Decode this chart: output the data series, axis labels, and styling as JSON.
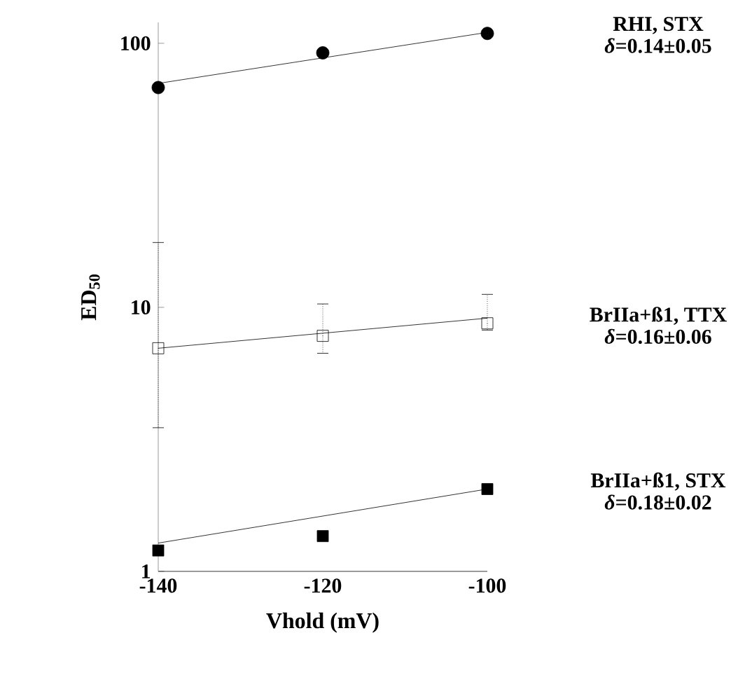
{
  "chart_data": {
    "type": "scatter",
    "xlabel": "Vhold (mV)",
    "ylabel": "ED$_{50}$",
    "log": "y",
    "xlim": [
      -140,
      -100
    ],
    "ylim": [
      1,
      120
    ],
    "xticks": [
      -140,
      -120,
      -100
    ],
    "yticks": [
      1,
      10,
      100
    ],
    "grid": false,
    "series": [
      {
        "name": "RHI, STX",
        "color": "#000000",
        "marker": "circle",
        "x": [
          -140,
          -120,
          -100
        ],
        "values": [
          68,
          92,
          109
        ]
      },
      {
        "name": "BrIIa+ß1, TTX",
        "color": "#000000",
        "marker": "square-open",
        "x": [
          -140,
          -120,
          -100
        ],
        "values": [
          7.0,
          7.8,
          8.7
        ],
        "errors": [
          [
            3.5,
            17.6
          ],
          [
            6.7,
            10.3
          ],
          [
            8.2,
            11.2
          ]
        ]
      },
      {
        "name": "BrIIa+ß1, STX",
        "color": "#000000",
        "marker": "square",
        "x": [
          -140,
          -120,
          -100
        ],
        "values": [
          1.2,
          1.36,
          2.05
        ]
      },
      {
        "type": "line",
        "color": "#000000",
        "marker": "none",
        "x": [
          -140,
          -100
        ],
        "values": [
          70.5,
          110
        ]
      },
      {
        "type": "line",
        "color": "#000000",
        "marker": "none",
        "x": [
          -140,
          -100
        ],
        "values": [
          7.0,
          9.1
        ]
      },
      {
        "type": "line",
        "color": "#000000",
        "marker": "none",
        "x": [
          -140,
          -100
        ],
        "values": [
          1.28,
          2.05
        ]
      }
    ],
    "annotations": [
      "*δ*=0.14±0.05",
      "*δ*=0.16±0.06",
      "*δ*=0.18±0.02"
    ]
  }
}
